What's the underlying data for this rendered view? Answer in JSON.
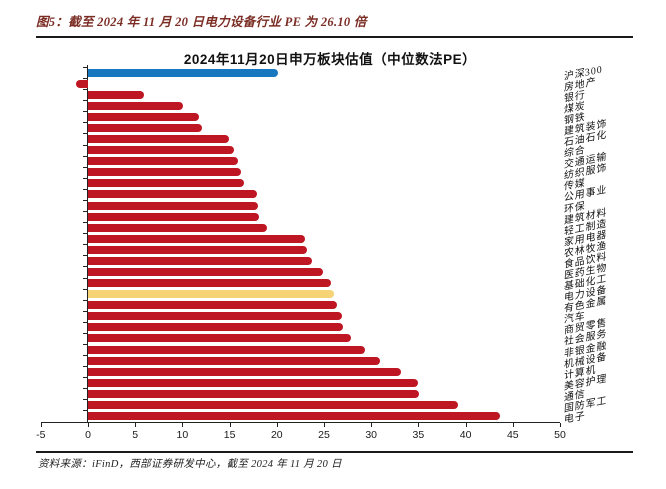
{
  "figure": {
    "title": "图5：截至 2024 年 11 月 20 日电力设备行业 PE 为 26.10 倍",
    "source": "资料来源：iFinD，西部证券研发中心，截至 2024 年 11 月 20 日"
  },
  "chart_data": {
    "type": "bar",
    "orientation": "horizontal",
    "title": "2024年11月20日申万板块估值（中位数法PE）",
    "xlabel": "",
    "ylabel": "",
    "xlim": [
      -5,
      50
    ],
    "xticks": [
      -5,
      0,
      5,
      10,
      15,
      20,
      25,
      30,
      35,
      40,
      45,
      50
    ],
    "grid": false,
    "legend": "none",
    "categories": [
      "沪深300",
      "房地产",
      "银行",
      "煤炭",
      "钢铁",
      "建筑装饰",
      "石油石化",
      "综合",
      "交通运输",
      "纺织服饰",
      "传媒",
      "公用事业",
      "环保",
      "建筑材料",
      "轻工制造",
      "家用电器",
      "农林牧渔",
      "食品饮料",
      "医药生物",
      "基础化工",
      "电力设备",
      "有色金属",
      "汽车",
      "商贸零售",
      "社会服务",
      "非银金融",
      "机械设备",
      "计算机",
      "美容护理",
      "通信",
      "国防军工",
      "电子"
    ],
    "values": [
      20.1,
      -1.3,
      5.9,
      10.1,
      11.8,
      12.1,
      14.9,
      15.5,
      15.9,
      16.2,
      16.5,
      17.9,
      18.0,
      18.1,
      19.0,
      23.0,
      23.2,
      23.7,
      24.9,
      25.7,
      26.1,
      26.4,
      26.9,
      27.0,
      27.9,
      29.3,
      30.9,
      33.1,
      34.9,
      35.1,
      39.2,
      43.6
    ],
    "bar_colors": [
      "#1878bf",
      "#be1622",
      "#be1622",
      "#be1622",
      "#be1622",
      "#be1622",
      "#be1622",
      "#be1622",
      "#be1622",
      "#be1622",
      "#be1622",
      "#be1622",
      "#be1622",
      "#be1622",
      "#be1622",
      "#be1622",
      "#be1622",
      "#be1622",
      "#be1622",
      "#be1622",
      "#f6d374",
      "#be1622",
      "#be1622",
      "#be1622",
      "#be1622",
      "#be1622",
      "#be1622",
      "#be1622",
      "#be1622",
      "#be1622",
      "#be1622",
      "#be1622"
    ],
    "color_legend": {
      "default_bar": "#be1622",
      "benchmark_hs300": "#1878bf",
      "highlight_power_equipment": "#f6d374"
    },
    "highlight_category": "电力设备",
    "benchmark_category": "沪深300"
  }
}
